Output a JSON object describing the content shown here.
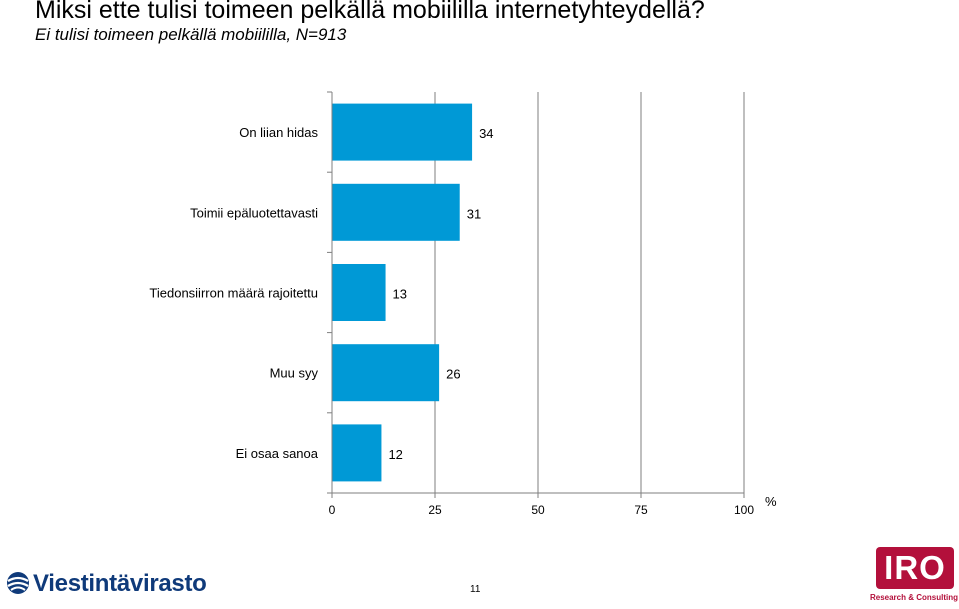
{
  "header": {
    "title": "Miksi ette tulisi toimeen pelkällä mobiililla internetyhteydellä?",
    "subtitle": "Ei tulisi toimeen pelkällä mobiililla,  N=913"
  },
  "chart_data": {
    "type": "bar",
    "orientation": "horizontal",
    "categories": [
      "On liian hidas",
      "Toimii epäluotettavasti",
      "Tiedonsiirron määrä rajoitettu",
      "Muu syy",
      "Ei osaa sanoa"
    ],
    "values": [
      34,
      31,
      13,
      26,
      12
    ],
    "data_labels": [
      "34",
      "31",
      "13",
      "26",
      "12"
    ],
    "xlim": [
      0,
      100
    ],
    "ticks": [
      0,
      25,
      50,
      75,
      100
    ],
    "tick_labels": [
      "0",
      "25",
      "50",
      "75",
      "100"
    ],
    "unit_label": "%",
    "grid": true,
    "bar_color": "#0099d6"
  },
  "footer": {
    "page_number": "11",
    "logo_left": {
      "icon": "globe-icon",
      "text": "Viestintävirasto",
      "color": "#0f3a7a"
    },
    "logo_right": {
      "text": "IRO",
      "subtext": "Research & Consulting",
      "color": "#b3103b"
    }
  }
}
